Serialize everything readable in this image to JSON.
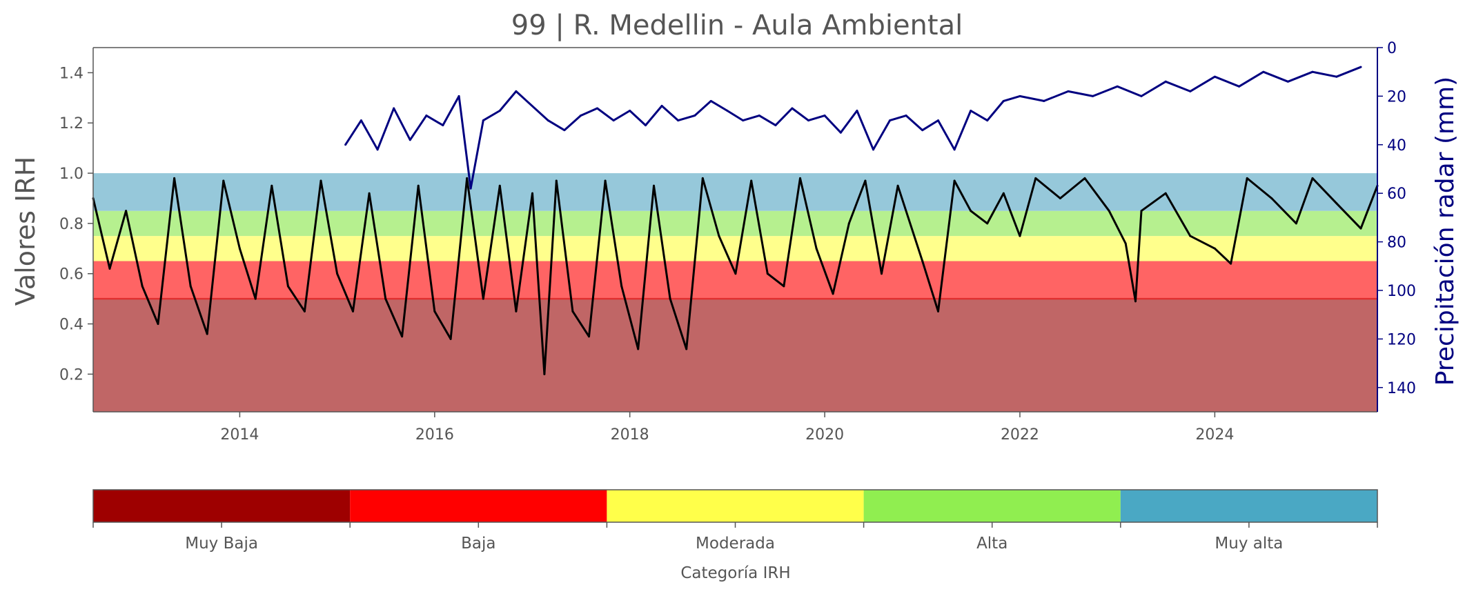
{
  "chart_data": [
    {
      "type": "line",
      "title": "99 | R. Medellin - Aula Ambiental",
      "ylabel": "Valores IRH",
      "ylabel_right": "Precipitación radar (mm)",
      "xlim": [
        "2012-07-01",
        "2025-09-01"
      ],
      "ylim": [
        0.05,
        1.5
      ],
      "ylim_right": [
        150,
        0
      ],
      "x_ticks": [
        "2014",
        "2016",
        "2018",
        "2020",
        "2022",
        "2024"
      ],
      "y_ticks": [
        "0.2",
        "0.4",
        "0.6",
        "0.8",
        "1.0",
        "1.2",
        "1.4"
      ],
      "y_right_ticks": [
        "0",
        "20",
        "40",
        "60",
        "80",
        "100",
        "120",
        "140"
      ],
      "grid": false,
      "bands": [
        {
          "category": "Muy Baja",
          "from": 0.05,
          "to": 0.5,
          "color": "#c06666"
        },
        {
          "category": "Baja",
          "from": 0.5,
          "to": 0.65,
          "color": "#ff6464"
        },
        {
          "category": "Moderada",
          "from": 0.65,
          "to": 0.75,
          "color": "#ffff8c"
        },
        {
          "category": "Alta",
          "from": 0.75,
          "to": 0.85,
          "color": "#b6f08f"
        },
        {
          "category": "Muy alta",
          "from": 0.85,
          "to": 1.0,
          "color": "#96c8da"
        }
      ],
      "threshold_line": {
        "y": 0.5,
        "color": "#e03030"
      },
      "series": [
        {
          "axis": "left",
          "color": "#000000",
          "points": [
            [
              "2012-07-01",
              0.9
            ],
            [
              "2012-09-01",
              0.62
            ],
            [
              "2012-11-01",
              0.85
            ],
            [
              "2013-01-01",
              0.55
            ],
            [
              "2013-03-01",
              0.4
            ],
            [
              "2013-05-01",
              0.98
            ],
            [
              "2013-07-01",
              0.55
            ],
            [
              "2013-09-01",
              0.36
            ],
            [
              "2013-11-01",
              0.97
            ],
            [
              "2014-01-01",
              0.7
            ],
            [
              "2014-03-01",
              0.5
            ],
            [
              "2014-05-01",
              0.95
            ],
            [
              "2014-07-01",
              0.55
            ],
            [
              "2014-09-01",
              0.45
            ],
            [
              "2014-11-01",
              0.97
            ],
            [
              "2015-01-01",
              0.6
            ],
            [
              "2015-03-01",
              0.45
            ],
            [
              "2015-05-01",
              0.92
            ],
            [
              "2015-07-01",
              0.5
            ],
            [
              "2015-09-01",
              0.35
            ],
            [
              "2015-11-01",
              0.95
            ],
            [
              "2016-01-01",
              0.45
            ],
            [
              "2016-03-01",
              0.34
            ],
            [
              "2016-05-01",
              0.98
            ],
            [
              "2016-07-01",
              0.5
            ],
            [
              "2016-09-01",
              0.95
            ],
            [
              "2016-11-01",
              0.45
            ],
            [
              "2017-01-01",
              0.92
            ],
            [
              "2017-02-15",
              0.2
            ],
            [
              "2017-04-01",
              0.97
            ],
            [
              "2017-06-01",
              0.45
            ],
            [
              "2017-08-01",
              0.35
            ],
            [
              "2017-10-01",
              0.97
            ],
            [
              "2017-12-01",
              0.55
            ],
            [
              "2018-02-01",
              0.3
            ],
            [
              "2018-04-01",
              0.95
            ],
            [
              "2018-06-01",
              0.5
            ],
            [
              "2018-08-01",
              0.3
            ],
            [
              "2018-10-01",
              0.98
            ],
            [
              "2018-12-01",
              0.75
            ],
            [
              "2019-02-01",
              0.6
            ],
            [
              "2019-04-01",
              0.97
            ],
            [
              "2019-06-01",
              0.6
            ],
            [
              "2019-08-01",
              0.55
            ],
            [
              "2019-10-01",
              0.98
            ],
            [
              "2019-12-01",
              0.7
            ],
            [
              "2020-02-01",
              0.52
            ],
            [
              "2020-04-01",
              0.8
            ],
            [
              "2020-06-01",
              0.97
            ],
            [
              "2020-08-01",
              0.6
            ],
            [
              "2020-10-01",
              0.95
            ],
            [
              "2021-01-01",
              0.65
            ],
            [
              "2021-03-01",
              0.45
            ],
            [
              "2021-05-01",
              0.97
            ],
            [
              "2021-07-01",
              0.85
            ],
            [
              "2021-09-01",
              0.8
            ],
            [
              "2021-11-01",
              0.92
            ],
            [
              "2022-01-01",
              0.75
            ],
            [
              "2022-03-01",
              0.98
            ],
            [
              "2022-06-01",
              0.9
            ],
            [
              "2022-09-01",
              0.98
            ],
            [
              "2022-12-01",
              0.85
            ],
            [
              "2023-02-01",
              0.72
            ],
            [
              "2023-03-10",
              0.49
            ],
            [
              "2023-04-01",
              0.85
            ],
            [
              "2023-07-01",
              0.92
            ],
            [
              "2023-10-01",
              0.75
            ],
            [
              "2024-01-01",
              0.7
            ],
            [
              "2024-03-01",
              0.64
            ],
            [
              "2024-05-01",
              0.98
            ],
            [
              "2024-08-01",
              0.9
            ],
            [
              "2024-11-01",
              0.8
            ],
            [
              "2025-01-01",
              0.98
            ],
            [
              "2025-04-01",
              0.88
            ],
            [
              "2025-07-01",
              0.78
            ],
            [
              "2025-09-01",
              0.95
            ]
          ]
        },
        {
          "axis": "right",
          "color": "#000080",
          "points": [
            [
              "2015-02-01",
              40
            ],
            [
              "2015-04-01",
              30
            ],
            [
              "2015-06-01",
              42
            ],
            [
              "2015-08-01",
              25
            ],
            [
              "2015-10-01",
              38
            ],
            [
              "2015-12-01",
              28
            ],
            [
              "2016-02-01",
              32
            ],
            [
              "2016-04-01",
              20
            ],
            [
              "2016-05-15",
              58
            ],
            [
              "2016-07-01",
              30
            ],
            [
              "2016-09-01",
              26
            ],
            [
              "2016-11-01",
              18
            ],
            [
              "2017-03-01",
              30
            ],
            [
              "2017-05-01",
              34
            ],
            [
              "2017-07-01",
              28
            ],
            [
              "2017-09-01",
              25
            ],
            [
              "2017-11-01",
              30
            ],
            [
              "2018-01-01",
              26
            ],
            [
              "2018-03-01",
              32
            ],
            [
              "2018-05-01",
              24
            ],
            [
              "2018-07-01",
              30
            ],
            [
              "2018-09-01",
              28
            ],
            [
              "2018-11-01",
              22
            ],
            [
              "2019-01-01",
              26
            ],
            [
              "2019-03-01",
              30
            ],
            [
              "2019-05-01",
              28
            ],
            [
              "2019-07-01",
              32
            ],
            [
              "2019-09-01",
              25
            ],
            [
              "2019-11-01",
              30
            ],
            [
              "2020-01-01",
              28
            ],
            [
              "2020-03-01",
              35
            ],
            [
              "2020-05-01",
              26
            ],
            [
              "2020-07-01",
              42
            ],
            [
              "2020-09-01",
              30
            ],
            [
              "2020-11-01",
              28
            ],
            [
              "2021-01-01",
              34
            ],
            [
              "2021-03-01",
              30
            ],
            [
              "2021-05-01",
              42
            ],
            [
              "2021-07-01",
              26
            ],
            [
              "2021-09-01",
              30
            ],
            [
              "2021-11-01",
              22
            ],
            [
              "2022-01-01",
              20
            ],
            [
              "2022-04-01",
              22
            ],
            [
              "2022-07-01",
              18
            ],
            [
              "2022-10-01",
              20
            ],
            [
              "2023-01-01",
              16
            ],
            [
              "2023-04-01",
              20
            ],
            [
              "2023-07-01",
              14
            ],
            [
              "2023-10-01",
              18
            ],
            [
              "2024-01-01",
              12
            ],
            [
              "2024-04-01",
              16
            ],
            [
              "2024-07-01",
              10
            ],
            [
              "2024-10-01",
              14
            ],
            [
              "2025-01-01",
              10
            ],
            [
              "2025-04-01",
              12
            ],
            [
              "2025-07-01",
              8
            ]
          ]
        }
      ]
    },
    {
      "type": "colorbar",
      "title": "Categoría IRH",
      "categories": [
        "Muy Baja",
        "Baja",
        "Moderada",
        "Alta",
        "Muy alta"
      ],
      "colors": [
        "#9e0000",
        "#ff0000",
        "#ffff4a",
        "#90ee50",
        "#4aa8c4"
      ]
    }
  ]
}
